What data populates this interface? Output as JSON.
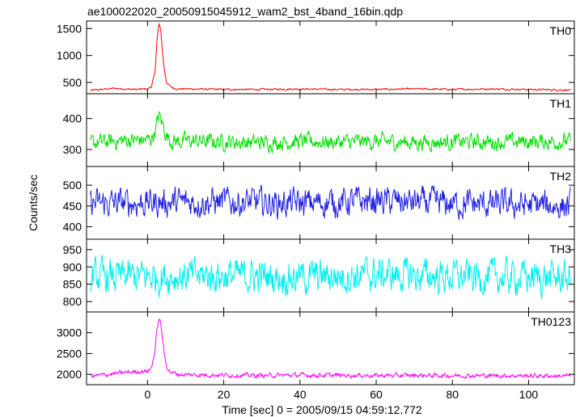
{
  "chart_data": {
    "type": "line",
    "title": "ae100022020_20050915045912_wam2_bst_4band_16bin.qdp",
    "xlabel": "Time [sec] 0 = 2005/09/15 04:59:12.772",
    "ylabel": "Counts/sec",
    "xlim": [
      -16,
      112
    ],
    "x_ticks": [
      0,
      20,
      40,
      60,
      80,
      100
    ],
    "grid": false,
    "legend": "none",
    "panels": [
      {
        "name": "TH0",
        "color": "#ff0000",
        "ylim": [
          290,
          1640
        ],
        "y_ticks": [
          500,
          1000,
          1500
        ],
        "series": {
          "x": [
            -15,
            -12,
            -9,
            -6,
            -3,
            0,
            1,
            2,
            2.5,
            3,
            3.5,
            4,
            4.5,
            5,
            6,
            7,
            8,
            10,
            20,
            30,
            40,
            50,
            60,
            70,
            80,
            90,
            100,
            110
          ],
          "y": [
            350,
            370,
            390,
            380,
            370,
            380,
            420,
            700,
            1300,
            1600,
            1450,
            1000,
            700,
            500,
            420,
            390,
            380,
            380,
            370,
            370,
            380,
            370,
            370,
            380,
            370,
            380,
            370,
            360
          ],
          "noise": 28
        }
      },
      {
        "name": "TH1",
        "color": "#00e000",
        "ylim": [
          245,
          480
        ],
        "y_ticks": [
          300,
          400
        ],
        "series": {
          "x": [
            -15,
            -10,
            -5,
            0,
            1,
            2,
            3,
            4,
            5,
            6,
            8,
            10,
            20,
            30,
            40,
            50,
            60,
            70,
            80,
            90,
            100,
            110
          ],
          "y": [
            320,
            325,
            330,
            330,
            335,
            360,
            410,
            380,
            345,
            330,
            325,
            328,
            325,
            322,
            326,
            324,
            325,
            323,
            325,
            324,
            325,
            326
          ],
          "noise": 45
        }
      },
      {
        "name": "TH2",
        "color": "#2020e0",
        "ylim": [
          370,
          545
        ],
        "y_ticks": [
          400,
          450,
          500
        ],
        "series": {
          "x": [
            -15,
            0,
            20,
            40,
            60,
            80,
            100,
            110
          ],
          "y": [
            455,
            458,
            460,
            456,
            462,
            455,
            452,
            450
          ],
          "noise": 60
        }
      },
      {
        "name": "TH3",
        "color": "#00f0f0",
        "ylim": [
          770,
          980
        ],
        "y_ticks": [
          800,
          850,
          900,
          950
        ],
        "series": {
          "x": [
            -15,
            0,
            20,
            40,
            60,
            80,
            100,
            110
          ],
          "y": [
            870,
            872,
            875,
            870,
            878,
            872,
            870,
            868
          ],
          "noise": 85
        }
      },
      {
        "name": "TH0123",
        "color": "#ff00ff",
        "ylim": [
          1750,
          3500
        ],
        "y_ticks": [
          2000,
          2500,
          3000
        ],
        "series": {
          "x": [
            -15,
            -10,
            -5,
            0,
            1,
            2,
            2.5,
            3,
            3.5,
            4,
            4.5,
            5,
            6,
            8,
            10,
            20,
            30,
            40,
            50,
            60,
            70,
            80,
            90,
            100,
            110
          ],
          "y": [
            1950,
            2000,
            2050,
            2080,
            2150,
            2600,
            3100,
            3350,
            3200,
            2800,
            2400,
            2200,
            2050,
            2000,
            1990,
            1980,
            1970,
            1980,
            1975,
            1970,
            1975,
            1970,
            1968,
            1965,
            1960
          ],
          "noise": 90
        }
      }
    ]
  }
}
